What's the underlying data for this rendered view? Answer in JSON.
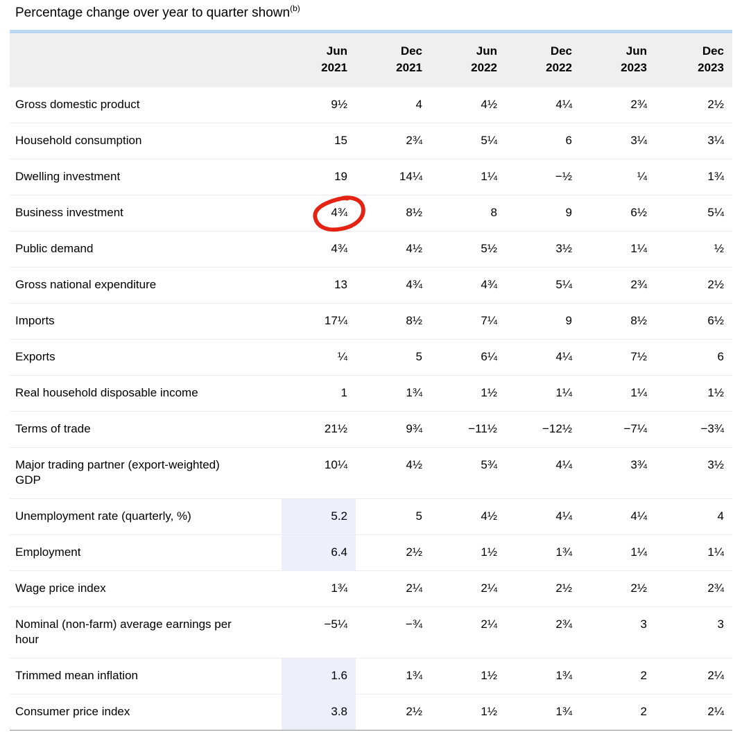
{
  "page": {
    "title": "Percentage change over year to quarter shown",
    "title_superscript": "(b)"
  },
  "colors": {
    "header_background": "#efefef",
    "header_top_border": "#b9d7f3",
    "row_separator": "#ececec",
    "table_bottom_border": "#909090",
    "highlight_cell_background": "#edeffb",
    "annotation_red": "#e42313"
  },
  "table": {
    "columns": [
      {
        "month": "Jun",
        "year": "2021"
      },
      {
        "month": "Dec",
        "year": "2021"
      },
      {
        "month": "Jun",
        "year": "2022"
      },
      {
        "month": "Dec",
        "year": "2022"
      },
      {
        "month": "Jun",
        "year": "2023"
      },
      {
        "month": "Dec",
        "year": "2023"
      }
    ],
    "rows": [
      {
        "label": "Gross domestic product",
        "values": [
          "9½",
          "4",
          "4½",
          "4¼",
          "2¾",
          "2½"
        ]
      },
      {
        "label": "Household consumption",
        "values": [
          "15",
          "2¾",
          "5¼",
          "6",
          "3¼",
          "3¼"
        ]
      },
      {
        "label": "Dwelling investment",
        "values": [
          "19",
          "14¼",
          "1¼",
          "−½",
          "¼",
          "1¾"
        ]
      },
      {
        "label": "Business investment",
        "values": [
          "4¾",
          "8½",
          "8",
          "9",
          "6½",
          "5¼"
        ],
        "annotated_cell": 0
      },
      {
        "label": "Public demand",
        "values": [
          "4¾",
          "4½",
          "5½",
          "3½",
          "1¼",
          "½"
        ]
      },
      {
        "label": "Gross national expenditure",
        "values": [
          "13",
          "4¾",
          "4¾",
          "5¼",
          "2¾",
          "2½"
        ]
      },
      {
        "label": "Imports",
        "values": [
          "17¼",
          "8½",
          "7¼",
          "9",
          "8½",
          "6½"
        ]
      },
      {
        "label": "Exports",
        "values": [
          "¼",
          "5",
          "6¼",
          "4¼",
          "7½",
          "6"
        ]
      },
      {
        "label": "Real household disposable income",
        "values": [
          "1",
          "1¾",
          "1½",
          "1¼",
          "1¼",
          "1½"
        ]
      },
      {
        "label": "Terms of trade",
        "values": [
          "21½",
          "9¾",
          "−11½",
          "−12½",
          "−7¼",
          "−3¾"
        ]
      },
      {
        "label": "Major trading partner (export-weighted) GDP",
        "values": [
          "10¼",
          "4½",
          "5¾",
          "4¼",
          "3¾",
          "3½"
        ]
      },
      {
        "label": "Unemployment rate (quarterly, %)",
        "values": [
          "5.2",
          "5",
          "4½",
          "4¼",
          "4¼",
          "4"
        ],
        "highlight_cells": [
          0
        ]
      },
      {
        "label": "Employment",
        "values": [
          "6.4",
          "2½",
          "1½",
          "1¾",
          "1¼",
          "1¼"
        ],
        "highlight_cells": [
          0
        ]
      },
      {
        "label": "Wage price index",
        "values": [
          "1¾",
          "2¼",
          "2¼",
          "2½",
          "2½",
          "2¾"
        ]
      },
      {
        "label": "Nominal (non-farm) average earnings per hour",
        "values": [
          "−5¼",
          "−¾",
          "2¼",
          "2¾",
          "3",
          "3"
        ]
      },
      {
        "label": "Trimmed mean inflation",
        "values": [
          "1.6",
          "1¾",
          "1½",
          "1¾",
          "2",
          "2¼"
        ],
        "highlight_cells": [
          0
        ]
      },
      {
        "label": "Consumer price index",
        "values": [
          "3.8",
          "2½",
          "1½",
          "1¾",
          "2",
          "2¼"
        ],
        "highlight_cells": [
          0
        ]
      }
    ],
    "annotation": {
      "type": "hand-drawn-red-circle",
      "row_label": "Business investment",
      "column": "Jun 2021",
      "circled_value": "4¾"
    }
  }
}
